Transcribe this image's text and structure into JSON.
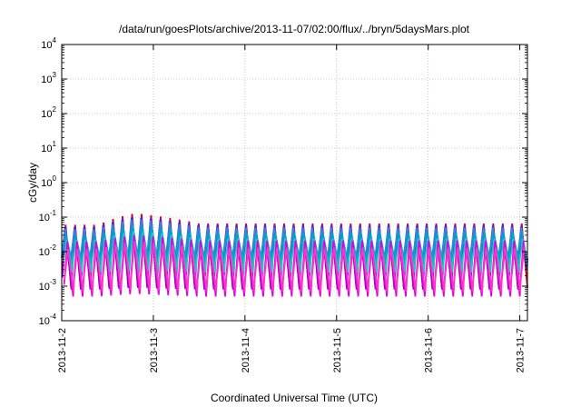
{
  "chart_data": {
    "type": "line",
    "title": "/data/run/goesPlots/archive/2013-11-07/02:00/flux/../bryn/5daysMars.plot",
    "xlabel": "Coordinated Universal Time (UTC)",
    "ylabel": "cGy/day",
    "yscale": "log",
    "ylim": [
      0.0001,
      10000
    ],
    "xlim": [
      "2013-11-02T00:00",
      "2013-11-07T02:00"
    ],
    "grid": true,
    "legend": "none",
    "y_ticks": [
      {
        "base": "10",
        "exp": "-4"
      },
      {
        "base": "10",
        "exp": "-3"
      },
      {
        "base": "10",
        "exp": "-2"
      },
      {
        "base": "10",
        "exp": "-1"
      },
      {
        "base": "10",
        "exp": "0"
      },
      {
        "base": "10",
        "exp": "1"
      },
      {
        "base": "10",
        "exp": "2"
      },
      {
        "base": "10",
        "exp": "3"
      },
      {
        "base": "10",
        "exp": "4"
      }
    ],
    "x_ticks": [
      "2013-11-2",
      "2013-11-3",
      "2013-11-4",
      "2013-11-5",
      "2013-11-6",
      "2013-11-7"
    ],
    "cycles_per_day": 9.6,
    "series": [
      {
        "color": "#dd0000",
        "peak": [
          0.06,
          0.13,
          0.065
        ],
        "trough": [
          0.0009,
          0.001,
          0.0009
        ],
        "phase": 0.05
      },
      {
        "color": "#9900cc",
        "peak": [
          0.055,
          0.11,
          0.06
        ],
        "trough": [
          0.0008,
          0.0009,
          0.0008
        ],
        "phase": 0.06
      },
      {
        "color": "#1e2fd6",
        "peak": [
          0.05,
          0.1,
          0.055
        ],
        "trough": [
          0.003,
          0.0035,
          0.003
        ],
        "phase": 0.0
      },
      {
        "color": "#3a7fd8",
        "peak": [
          0.045,
          0.09,
          0.05
        ],
        "trough": [
          0.004,
          0.0045,
          0.004
        ],
        "phase": 0.02
      },
      {
        "color": "#00a0d0",
        "peak": [
          0.03,
          0.06,
          0.035
        ],
        "trough": [
          0.005,
          0.0055,
          0.005
        ],
        "phase": 0.12
      },
      {
        "color": "#20c8c0",
        "peak": [
          0.022,
          0.04,
          0.024
        ],
        "trough": [
          0.0025,
          0.0028,
          0.0025
        ],
        "phase": 0.18
      },
      {
        "color": "#e000e0",
        "peak": [
          0.02,
          0.03,
          0.021
        ],
        "trough": [
          0.0005,
          0.0006,
          0.0005
        ],
        "phase": 0.25
      },
      {
        "color": "#ff33cc",
        "peak": [
          0.012,
          0.02,
          0.013
        ],
        "trough": [
          0.0007,
          0.0008,
          0.0007
        ],
        "phase": 0.3
      }
    ]
  }
}
